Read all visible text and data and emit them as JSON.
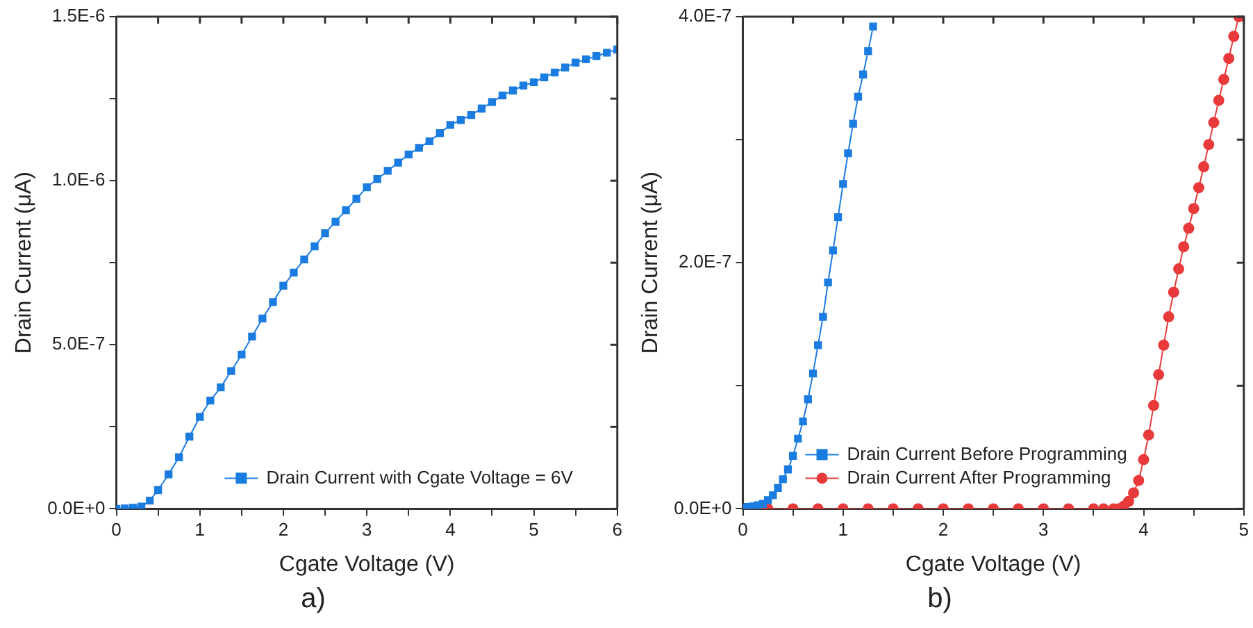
{
  "chart_data": [
    {
      "type": "line",
      "xlabel": "Cgate Voltage (V)",
      "ylabel": "Drain Current (μA)",
      "annotations": [
        "a)"
      ],
      "xlim": [
        0,
        6
      ],
      "ylim": [
        0,
        1.5e-06
      ],
      "xticks": [
        0,
        {
          "value": 0.5,
          "label": null
        },
        1,
        {
          "value": 1.5,
          "label": null
        },
        2,
        {
          "value": 2.5,
          "label": null
        },
        3,
        {
          "value": 3.5,
          "label": null
        },
        4,
        {
          "value": 4.5,
          "label": null
        },
        5,
        {
          "value": 5.5,
          "label": null
        },
        6
      ],
      "yticks": [
        {
          "value": 0,
          "label": "0.0E+0"
        },
        {
          "value": 2.5e-07,
          "label": null
        },
        {
          "value": 5e-07,
          "label": "5.0E-7"
        },
        {
          "value": 7.5e-07,
          "label": null
        },
        {
          "value": 1e-06,
          "label": "1.0E-6"
        },
        {
          "value": 1.25e-06,
          "label": null
        },
        {
          "value": 1.5e-06,
          "label": "1.5E-6"
        }
      ],
      "x": [
        0,
        0.1,
        0.2,
        0.3,
        0.4,
        0.5,
        0.625,
        0.75,
        0.875,
        1,
        1.125,
        1.25,
        1.375,
        1.5,
        1.625,
        1.75,
        1.875,
        2,
        2.125,
        2.25,
        2.375,
        2.5,
        2.625,
        2.75,
        2.875,
        3,
        3.125,
        3.25,
        3.375,
        3.5,
        3.625,
        3.75,
        3.875,
        4,
        4.125,
        4.25,
        4.375,
        4.5,
        4.625,
        4.75,
        4.875,
        5,
        5.125,
        5.25,
        5.375,
        5.5,
        5.625,
        5.75,
        5.875,
        6
      ],
      "series": [
        {
          "name": "Drain Current with Cgate Voltage = 6V",
          "color": "#1a7be0",
          "values": [
            0,
            1e-09,
            3e-09,
            7e-09,
            2.5e-08,
            5.7e-08,
            1.05e-07,
            1.57e-07,
            2.2e-07,
            2.8e-07,
            3.3e-07,
            3.7e-07,
            4.2e-07,
            4.7e-07,
            5.25e-07,
            5.8e-07,
            6.3e-07,
            6.8e-07,
            7.2e-07,
            7.6e-07,
            8e-07,
            8.4e-07,
            8.75e-07,
            9.1e-07,
            9.45e-07,
            9.8e-07,
            1.005e-06,
            1.03e-06,
            1.055e-06,
            1.08e-06,
            1.1e-06,
            1.12e-06,
            1.145e-06,
            1.17e-06,
            1.185e-06,
            1.2e-06,
            1.22e-06,
            1.24e-06,
            1.26e-06,
            1.275e-06,
            1.29e-06,
            1.3e-06,
            1.315e-06,
            1.33e-06,
            1.345e-06,
            1.36e-06,
            1.37e-06,
            1.38e-06,
            1.39e-06,
            1.4e-06
          ]
        }
      ],
      "marker": "square",
      "line_style": "solid",
      "legend": "bottom"
    },
    {
      "type": "line",
      "xlabel": "Cgate Voltage (V)",
      "ylabel": "Drain Current (μA)",
      "annotations": [
        "b)"
      ],
      "xlim": [
        0,
        5
      ],
      "ylim": [
        0,
        4e-07
      ],
      "xticks": [
        0,
        {
          "value": 0.5,
          "label": null
        },
        1,
        {
          "value": 1.5,
          "label": null
        },
        2,
        {
          "value": 2.5,
          "label": null
        },
        3,
        {
          "value": 3.5,
          "label": null
        },
        4,
        {
          "value": 4.5,
          "label": null
        },
        5
      ],
      "yticks": [
        {
          "value": 0,
          "label": "0.0E+0"
        },
        {
          "value": 1e-07,
          "label": null
        },
        {
          "value": 2e-07,
          "label": "2.0E-7"
        },
        {
          "value": 3e-07,
          "label": null
        },
        {
          "value": 4e-07,
          "label": "4.0E-7"
        }
      ],
      "series": [
        {
          "name": "Drain Current Before Programming",
          "color": "#1a7be0",
          "marker": "square",
          "x": [
            0,
            0.05,
            0.1,
            0.15,
            0.2,
            0.25,
            0.3,
            0.35,
            0.4,
            0.45,
            0.5,
            0.55,
            0.6,
            0.65,
            0.7,
            0.75,
            0.8,
            0.85,
            0.9,
            0.95,
            1,
            1.05,
            1.1,
            1.15,
            1.2,
            1.25,
            1.3
          ],
          "values": [
            1e-09,
            1.5e-09,
            2e-09,
            3e-09,
            4e-09,
            7e-09,
            1.1e-08,
            1.7e-08,
            2.4e-08,
            3.2e-08,
            4.3e-08,
            5.7e-08,
            7.1e-08,
            8.9e-08,
            1.1e-07,
            1.33e-07,
            1.56e-07,
            1.84e-07,
            2.1e-07,
            2.37e-07,
            2.64e-07,
            2.89e-07,
            3.13e-07,
            3.35e-07,
            3.53e-07,
            3.72e-07,
            3.92e-07
          ]
        },
        {
          "name": "Drain Current After Programming",
          "color": "#e83a3a",
          "marker": "circle",
          "x": [
            0,
            0.25,
            0.5,
            0.75,
            1,
            1.25,
            1.5,
            1.75,
            2,
            2.25,
            2.5,
            2.75,
            3,
            3.25,
            3.5,
            3.6,
            3.7,
            3.75,
            3.8,
            3.85,
            3.9,
            3.95,
            4,
            4.05,
            4.1,
            4.15,
            4.2,
            4.25,
            4.3,
            4.35,
            4.4,
            4.45,
            4.5,
            4.55,
            4.6,
            4.65,
            4.7,
            4.75,
            4.8,
            4.85,
            4.9,
            4.95
          ],
          "values": [
            0,
            0,
            0,
            0,
            0,
            0,
            0,
            0,
            0,
            0,
            0,
            0,
            0,
            0,
            0,
            0,
            0,
            0,
            2e-09,
            6e-09,
            1.3e-08,
            2.3e-08,
            4e-08,
            6e-08,
            8.4e-08,
            1.09e-07,
            1.33e-07,
            1.56e-07,
            1.76e-07,
            1.95e-07,
            2.13e-07,
            2.28e-07,
            2.44e-07,
            2.61e-07,
            2.78e-07,
            2.96e-07,
            3.14e-07,
            3.32e-07,
            3.49e-07,
            3.66e-07,
            3.84e-07,
            4e-07
          ]
        }
      ],
      "line_style": "solid",
      "legend": "bottom left"
    }
  ]
}
